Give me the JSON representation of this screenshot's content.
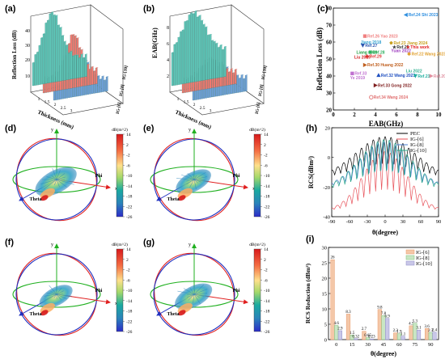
{
  "panel_labels": [
    "(a)",
    "(b)",
    "(c)",
    "(d)",
    "(e)",
    "(f)",
    "(g)",
    "(h)",
    "(i)"
  ],
  "colors": {
    "teal": "#5ec4b6",
    "salmon": "#f07a70",
    "steel": "#6e9fd6",
    "pec": "#000000",
    "ig6": "#e8525a",
    "ig8": "#4d7fd0",
    "ig10": "#2aa88a",
    "bar6": "#f4c7a8",
    "bar8": "#c9e6c4",
    "bar10": "#c9c7e8"
  },
  "panel_a": {
    "zlabel": "Reflection Loss (dB)",
    "xlabel": "Thickness (mm)",
    "ztick_labels": [
      "10",
      "20",
      "30",
      "40"
    ],
    "xtick_labels": [
      "1",
      "1.5",
      "2",
      "2.5",
      "3"
    ],
    "series_labels": [
      "IG-[6]",
      "IG-[8]",
      "IG-[10]"
    ]
  },
  "panel_b": {
    "zlabel": "EAB(GHz)",
    "xlabel": "Thickness (mm)",
    "ztick_labels": [
      "2",
      "4",
      "6",
      "8"
    ],
    "xtick_labels": [
      "1",
      "1.5",
      "2",
      "2.5",
      "3"
    ],
    "series_labels": [
      "IG-[6]",
      "IG-[8]",
      "IG-[10]"
    ]
  },
  "chart_data": [
    {
      "type": "scatter",
      "panel": "(c)",
      "xlabel": "EAB(GHz)",
      "ylabel": "Reflection Loss (dB)",
      "xlim": [
        0,
        10
      ],
      "ylim": [
        20,
        80
      ],
      "xticks": [
        0,
        2,
        4,
        6,
        8,
        10
      ],
      "yticks": [
        20,
        30,
        40,
        50,
        60,
        70,
        80
      ],
      "points": [
        {
          "label": "Ref.24 Shi 2023",
          "x": 6.9,
          "y": 76,
          "marker": "tri-left",
          "color": "#2f8fe0"
        },
        {
          "label": "Ref.26 Yao 2023",
          "x": 3.0,
          "y": 63.5,
          "marker": "square",
          "color": "#f08080"
        },
        {
          "label": "Jiang 2018",
          "x": 2.9,
          "y": 60,
          "marker": "none",
          "color": "#33a0d0"
        },
        {
          "label": "Ref.27",
          "x": 2.8,
          "y": 58,
          "marker": "tri-down",
          "color": "#2a55b0"
        },
        {
          "label": "Ref.23 Jiang 2024",
          "x": 5.5,
          "y": 59.5,
          "marker": "pentagon",
          "color": "#c8a020"
        },
        {
          "label": "Ref.25",
          "x": 5.8,
          "y": 57,
          "marker": "star",
          "color": "#333333"
        },
        {
          "label": "Yuan 2022",
          "x": 5.8,
          "y": 55,
          "marker": "none",
          "color": "#a040c0"
        },
        {
          "label": "This work",
          "x": 7.1,
          "y": 57,
          "marker": "star",
          "color": "#e02020"
        },
        {
          "label": "Liang 2019",
          "x": 2.5,
          "y": 54,
          "marker": "none",
          "color": "#20a040"
        },
        {
          "label": "Ref.28",
          "x": 3.5,
          "y": 54,
          "marker": "circle",
          "color": "#30b060"
        },
        {
          "label": "Liu 2015",
          "x": 2.3,
          "y": 51,
          "marker": "none",
          "color": "#d02020"
        },
        {
          "label": "Ref.29",
          "x": 3.2,
          "y": 51.5,
          "marker": "diamond",
          "color": "#e03030"
        },
        {
          "label": "Ref.22 Wang 2023",
          "x": 7.2,
          "y": 53,
          "marker": "hexagon",
          "color": "#e0a030"
        },
        {
          "label": "Ref.30 Huang 2022",
          "x": 3.0,
          "y": 46.5,
          "marker": "tri-right",
          "color": "#c06020"
        },
        {
          "label": "Ref.33",
          "x": 1.8,
          "y": 41.5,
          "marker": "square",
          "color": "#c070d0"
        },
        {
          "label": "Ye 2019",
          "x": 1.9,
          "y": 39,
          "marker": "none",
          "color": "#c070d0"
        },
        {
          "label": "Ref.32 Wang 2023",
          "x": 4.3,
          "y": 40.5,
          "marker": "tri-up",
          "color": "#2050c0"
        },
        {
          "label": "Liu 2022",
          "x": 7.2,
          "y": 43,
          "marker": "none",
          "color": "#30b090"
        },
        {
          "label": "Ref.21",
          "x": 7.8,
          "y": 40,
          "marker": "tri-down",
          "color": "#20b0a0"
        },
        {
          "label": "Ref.20 Liu 2023",
          "x": 9.3,
          "y": 40,
          "marker": "tri-right",
          "color": "#e090a0"
        },
        {
          "label": "Ref.33 Gong 2022",
          "x": 4.0,
          "y": 34.5,
          "marker": "tri-right",
          "color": "#802020"
        },
        {
          "label": "Ref.34 Wang 2024",
          "x": 3.6,
          "y": 27.5,
          "marker": "circle-open",
          "color": "#e07070"
        }
      ]
    },
    {
      "type": "line",
      "panel": "(h)",
      "xlabel": "θ(degree)",
      "ylabel": "RCS(dBm²)",
      "xlim": [
        -90,
        90
      ],
      "ylim": [
        -40,
        20
      ],
      "xticks": [
        -90,
        -60,
        -30,
        0,
        30,
        60,
        90
      ],
      "yticks": [
        -40,
        -20,
        0,
        20
      ],
      "legend_position": "top-right",
      "series": [
        {
          "name": "PEC",
          "color": "#000000",
          "peak": 14,
          "floor": -14,
          "width": 0.78
        },
        {
          "name": "IG-[6]",
          "color": "#e8525a",
          "peak": 4,
          "floor": -36,
          "width": 0.58
        },
        {
          "name": "IG-[8]",
          "color": "#4d7fd0",
          "peak": 11,
          "floor": -20,
          "width": 0.66
        },
        {
          "name": "IG-[10]",
          "color": "#2aa88a",
          "peak": 12,
          "floor": -22,
          "width": 0.7
        }
      ]
    },
    {
      "type": "bar",
      "panel": "(i)",
      "xlabel": "θ(degree)",
      "ylabel": "RCS Reduction (dBm²)",
      "ylim": [
        0,
        30
      ],
      "yticks": [
        0,
        5,
        10,
        15,
        20,
        25,
        30
      ],
      "categories": [
        "0",
        "15",
        "30",
        "45",
        "60",
        "75",
        "90"
      ],
      "legend_position": "top-right",
      "series": [
        {
          "name": "IG-[6]",
          "values": [
            26,
            8.3,
            2.7,
            9.8,
            2.2,
            4.5,
            3.6
          ]
        },
        {
          "name": "IG-[8]",
          "values": [
            4.6,
            1.5,
            0.65,
            7.8,
            1.9,
            5.3,
            2.3
          ]
        },
        {
          "name": "IG-[10]",
          "values": [
            2.9,
            0.32,
            0.23,
            6.9,
            1.1,
            3.1,
            2.4
          ]
        }
      ],
      "value_labels": [
        [
          "26",
          "8.3",
          "2.7",
          "9.8",
          "2.2",
          "4.5",
          "3.6"
        ],
        [
          "4.6",
          "1.5",
          "0.65",
          "7.8",
          "1.9",
          "5.3",
          "2.3"
        ],
        [
          "2.9",
          "0.32",
          "0.23",
          "6.9",
          "1.1",
          "3.1",
          "2.4"
        ]
      ]
    }
  ],
  "radiation_panels": {
    "colorbar_title": "dB(m^2)",
    "colorbar_ticks": [
      "14",
      "2",
      "-2",
      "-6",
      "-10",
      "-14",
      "-18",
      "-22",
      "-26"
    ],
    "axis_labels": {
      "y": "y",
      "x": "x",
      "phi": "Phi",
      "theta": "Theta"
    }
  }
}
